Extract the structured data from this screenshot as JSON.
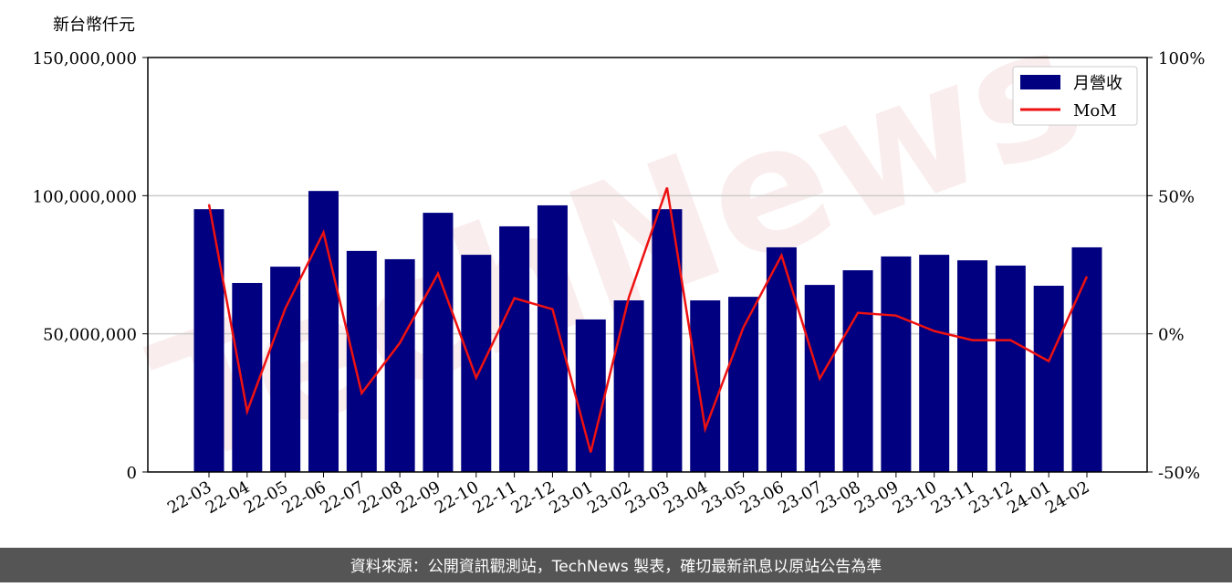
{
  "chart_data": {
    "type": "bar",
    "y_label": "新台幣仟元",
    "watermark": "TechNews",
    "source": "資料來源：公開資訊觀測站，TechNews 製表，確切最新訊息以原站公告為準",
    "categories": [
      "22-03",
      "22-04",
      "22-05",
      "22-06",
      "22-07",
      "22-08",
      "22-09",
      "22-10",
      "22-11",
      "22-12",
      "23-01",
      "23-02",
      "23-03",
      "23-04",
      "23-05",
      "23-06",
      "23-07",
      "23-08",
      "23-09",
      "23-10",
      "23-11",
      "23-12",
      "24-01",
      "24-02"
    ],
    "series": [
      {
        "name": "月營收",
        "type": "bar",
        "color": "#000080",
        "values": [
          95100000,
          68400000,
          74300000,
          101700000,
          80000000,
          77000000,
          93800000,
          78600000,
          88900000,
          96500000,
          55200000,
          62100000,
          95100000,
          62100000,
          63400000,
          81300000,
          67700000,
          73000000,
          78000000,
          78600000,
          76600000,
          74700000,
          67400000,
          81300000
        ]
      },
      {
        "name": "MoM",
        "type": "line",
        "color": "#ee1111",
        "axis": "y2",
        "values": [
          46.9,
          -28.1,
          9.2,
          36.7,
          -21.5,
          -3.3,
          21.8,
          -15.9,
          12.9,
          8.9,
          -42.9,
          13.2,
          52.9,
          -34.4,
          2.3,
          28.4,
          -16.2,
          7.6,
          6.6,
          1.0,
          -2.3,
          -2.3,
          -9.9,
          20.8
        ]
      }
    ],
    "ylim": [
      0,
      150000000
    ],
    "yticks": [
      0,
      {
        "value": 50000000,
        "label": "50,000,000"
      },
      {
        "value": 100000000,
        "label": "100,000,000"
      },
      {
        "value": 150000000,
        "label": "150,000,000"
      }
    ],
    "y2lim": [
      -50,
      100
    ],
    "y2ticks": [
      {
        "value": -50,
        "label": "-50%"
      },
      {
        "value": 0,
        "label": "0%"
      },
      {
        "value": 50,
        "label": "50%"
      },
      {
        "value": 100,
        "label": "100%"
      }
    ],
    "grid": true,
    "legend": "upper right"
  }
}
